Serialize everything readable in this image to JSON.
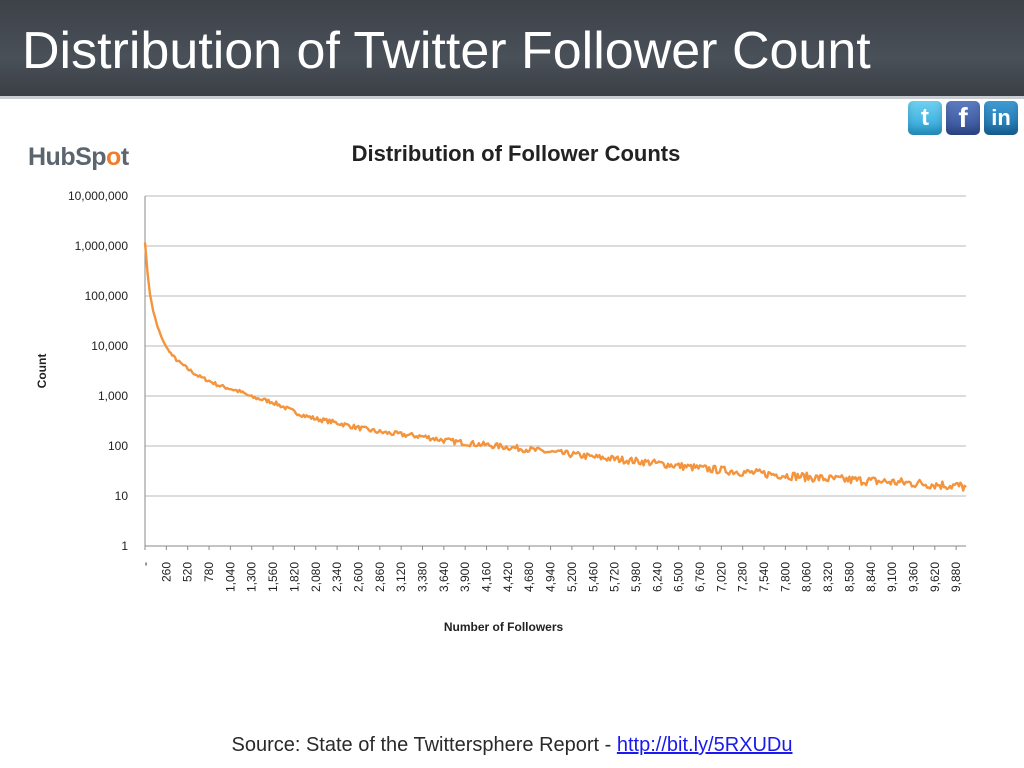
{
  "slide": {
    "title": "Distribution of Twitter Follower Count",
    "logo": {
      "prefix": "HubSp",
      "accent": "o",
      "suffix": "t"
    },
    "footer": {
      "text": "Source: State of the Twittersphere Report - ",
      "link": "http://bit.ly/5RXUDu"
    },
    "social_icons": [
      {
        "name": "twitter-icon",
        "glyph": "t"
      },
      {
        "name": "facebook-icon",
        "glyph": "f"
      },
      {
        "name": "linkedin-icon",
        "glyph": "in"
      }
    ]
  },
  "chart_data": {
    "type": "line",
    "title": "Distribution of Follower Counts",
    "xlabel": "Number of Followers",
    "ylabel": "Count",
    "y_scale": "log",
    "ylim": [
      1,
      10000000
    ],
    "xlim": [
      0,
      10000
    ],
    "y_ticks": [
      "1",
      "10",
      "100",
      "1,000",
      "10,000",
      "100,000",
      "1,000,000",
      "10,000,000"
    ],
    "y_tick_values": [
      1,
      10,
      100,
      1000,
      10000,
      100000,
      1000000,
      10000000
    ],
    "x_ticks": [
      "-",
      "260",
      "520",
      "780",
      "1,040",
      "1,300",
      "1,560",
      "1,820",
      "2,080",
      "2,340",
      "2,600",
      "2,860",
      "3,120",
      "3,380",
      "3,640",
      "3,900",
      "4,160",
      "4,420",
      "4,680",
      "4,940",
      "5,200",
      "5,460",
      "5,720",
      "5,980",
      "6,240",
      "6,500",
      "6,760",
      "7,020",
      "7,280",
      "7,540",
      "7,800",
      "8,060",
      "8,320",
      "8,580",
      "8,840",
      "9,100",
      "9,360",
      "9,620",
      "9,880"
    ],
    "x_tick_values": [
      0,
      260,
      520,
      780,
      1040,
      1300,
      1560,
      1820,
      2080,
      2340,
      2600,
      2860,
      3120,
      3380,
      3640,
      3900,
      4160,
      4420,
      4680,
      4940,
      5200,
      5460,
      5720,
      5980,
      6240,
      6500,
      6760,
      7020,
      7280,
      7540,
      7800,
      8060,
      8320,
      8580,
      8840,
      9100,
      9360,
      9620,
      9880
    ],
    "grid": true,
    "legend": "none",
    "series": [
      {
        "color": "#f4943c",
        "x": [
          0,
          30,
          60,
          100,
          150,
          200,
          260,
          330,
          400,
          520,
          650,
          780,
          910,
          1040,
          1170,
          1300,
          1430,
          1560,
          1690,
          1820,
          1950,
          2080,
          2340,
          2600,
          2860,
          3120,
          3380,
          3640,
          3900,
          4160,
          4420,
          4680,
          4940,
          5200,
          5460,
          5720,
          5980,
          6240,
          6500,
          6760,
          7020,
          7280,
          7540,
          7800,
          8060,
          8320,
          8580,
          8840,
          9100,
          9360,
          9620,
          9880,
          10000
        ],
        "y": [
          1200000,
          300000,
          110000,
          50000,
          25000,
          15000,
          9500,
          6500,
          5000,
          3500,
          2500,
          2000,
          1600,
          1400,
          1200,
          950,
          850,
          750,
          600,
          480,
          400,
          350,
          290,
          230,
          190,
          170,
          155,
          130,
          115,
          105,
          95,
          85,
          75,
          68,
          60,
          55,
          50,
          45,
          40,
          36,
          33,
          30,
          28,
          26,
          24,
          22,
          21,
          20,
          19,
          18,
          17,
          16,
          15
        ]
      }
    ]
  }
}
